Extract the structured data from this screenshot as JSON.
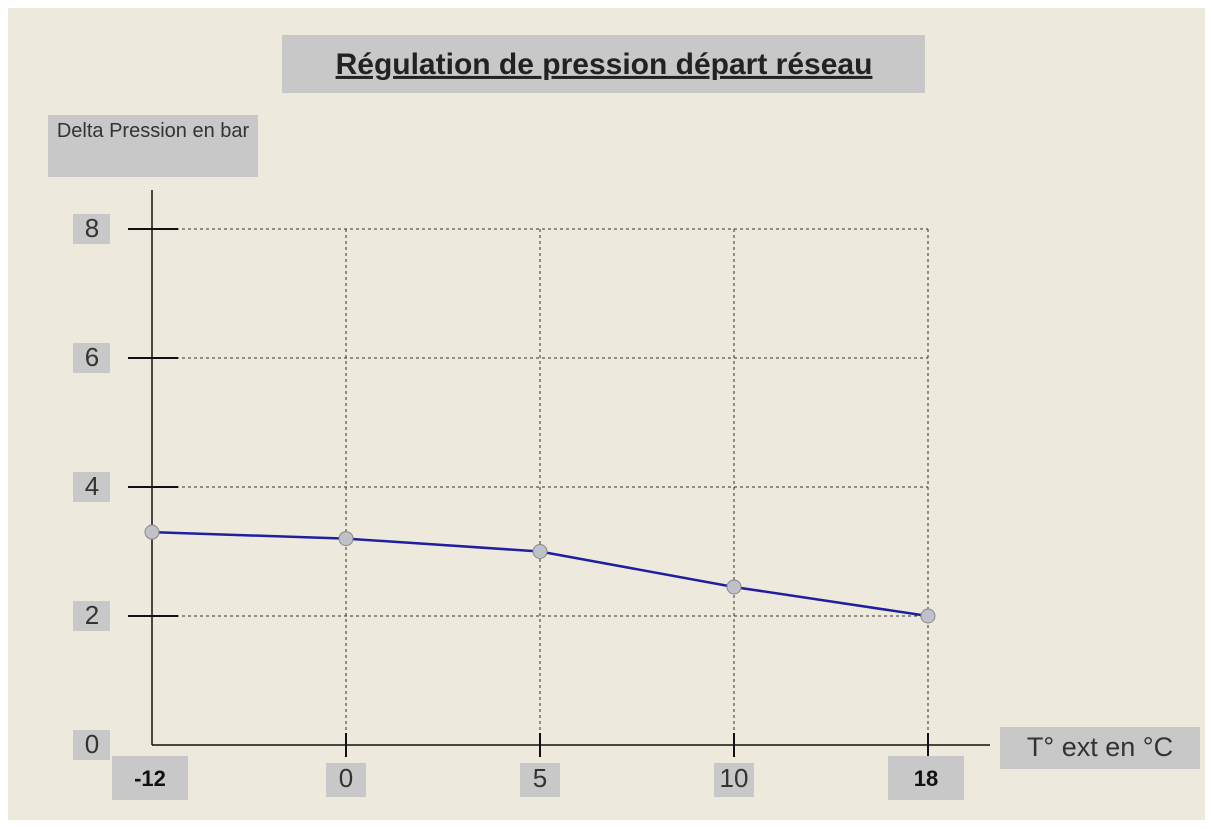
{
  "chart_data": {
    "type": "line",
    "title": "Régulation de pression départ réseau",
    "y_label": "Delta Pression en bar",
    "x_label": "T° ext en °C",
    "categories": [
      "-12",
      "0",
      "5",
      "10",
      "18"
    ],
    "series": [
      {
        "color": "#1f1fa0",
        "values": [
          3.3,
          3.2,
          3.0,
          2.45,
          2.0
        ]
      }
    ],
    "ylim": [
      0,
      8
    ],
    "yticks": [
      0,
      2,
      4,
      6,
      8
    ],
    "grid": true
  }
}
